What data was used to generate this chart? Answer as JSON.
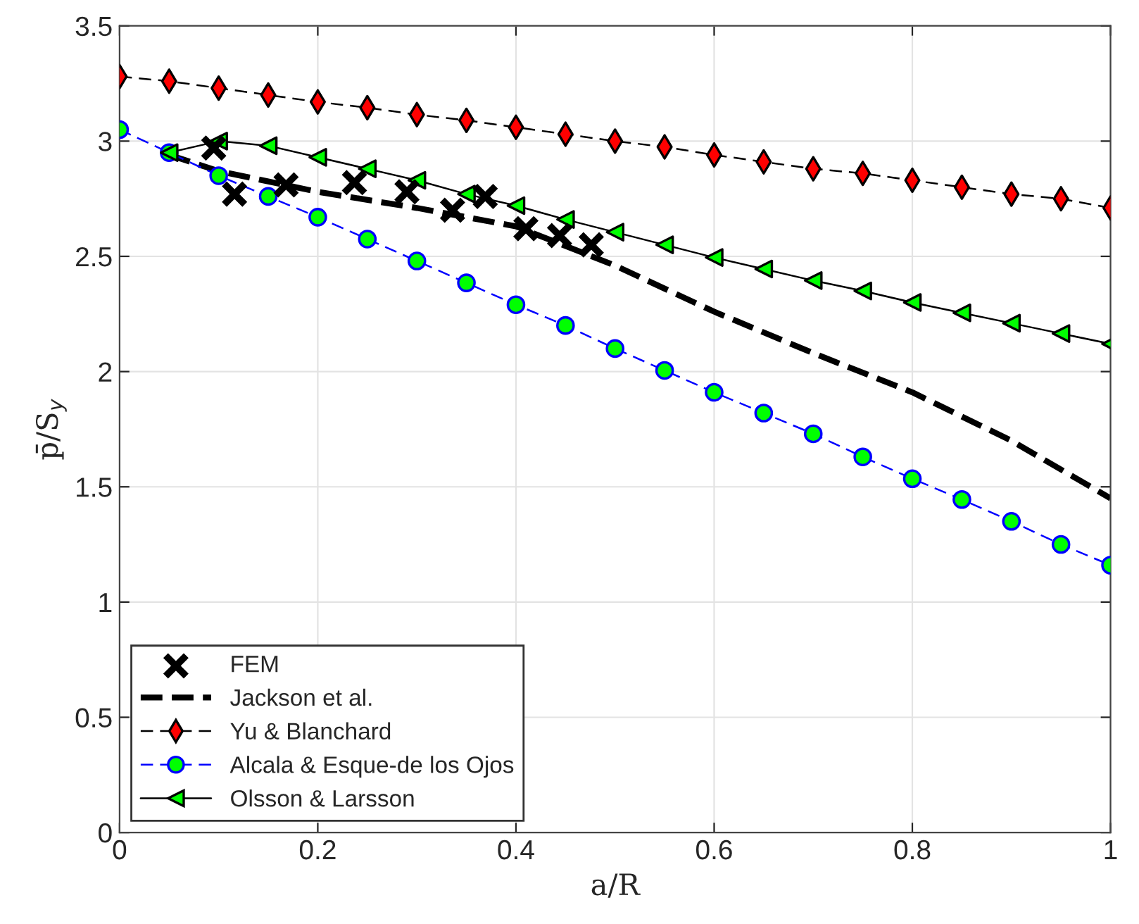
{
  "chart_data": {
    "type": "line",
    "xlabel": "a/R",
    "ylabel": "p̄/S$_{y}$",
    "xlim": [
      0,
      1
    ],
    "ylim": [
      0,
      3.5
    ],
    "xticks": [
      0,
      0.2,
      0.4,
      0.6,
      0.8,
      1
    ],
    "yticks": [
      0,
      0.5,
      1,
      1.5,
      2,
      2.5,
      3,
      3.5
    ],
    "grid": true,
    "legend": "bottom left",
    "series": [
      {
        "name": "FEM",
        "type": "scatter",
        "marker": "cross",
        "color": "#000000",
        "x": [
          0.095,
          0.116,
          0.168,
          0.237,
          0.29,
          0.336,
          0.369,
          0.41,
          0.444,
          0.476
        ],
        "values": [
          2.97,
          2.77,
          2.81,
          2.82,
          2.78,
          2.7,
          2.76,
          2.62,
          2.59,
          2.55
        ]
      },
      {
        "name": "Jackson et al.",
        "marker": "none",
        "line_style": "dashed",
        "color": "#000000",
        "x": [
          0.05,
          0.1,
          0.2,
          0.3,
          0.4,
          0.5,
          0.6,
          0.7,
          0.8,
          0.9,
          1.0
        ],
        "values": [
          2.94,
          2.87,
          2.78,
          2.71,
          2.63,
          2.46,
          2.26,
          2.08,
          1.91,
          1.7,
          1.45
        ]
      },
      {
        "name": "Yu & Blanchard",
        "marker": "diamond",
        "line_style": "dashed",
        "color": "#000000",
        "colors": [
          "#ff0000",
          "#ff0000",
          "#ff0000",
          "#ff0000",
          "#ff0000",
          "#ff0000",
          "#ff0000",
          "#ff0000",
          "#ff0000",
          "#ff0000",
          "#ff0000",
          "#ff0000",
          "#ff0000",
          "#ff0000",
          "#ff0000",
          "#ff0000",
          "#ff0000",
          "#ff0000",
          "#ff0000",
          "#ff0000",
          "#ff0000"
        ],
        "x": [
          0,
          0.05,
          0.1,
          0.15,
          0.2,
          0.25,
          0.3,
          0.35,
          0.4,
          0.45,
          0.5,
          0.55,
          0.6,
          0.65,
          0.7,
          0.75,
          0.8,
          0.85,
          0.9,
          0.95,
          1.0
        ],
        "values": [
          3.28,
          3.26,
          3.23,
          3.2,
          3.17,
          3.145,
          3.115,
          3.09,
          3.06,
          3.03,
          3.0,
          2.975,
          2.94,
          2.91,
          2.88,
          2.86,
          2.83,
          2.8,
          2.77,
          2.75,
          2.71
        ]
      },
      {
        "name": "Alcala & Esque-de los Ojos",
        "marker": "circle",
        "line_style": "dashed",
        "color": "#0000ff",
        "colors": [
          "#00ff00",
          "#00ff00",
          "#00ff00",
          "#00ff00",
          "#00ff00",
          "#00ff00",
          "#00ff00",
          "#00ff00",
          "#00ff00",
          "#00ff00",
          "#00ff00",
          "#00ff00",
          "#00ff00",
          "#00ff00",
          "#00ff00",
          "#00ff00",
          "#00ff00",
          "#00ff00",
          "#00ff00",
          "#00ff00",
          "#00ff00"
        ],
        "x": [
          0,
          0.05,
          0.1,
          0.15,
          0.2,
          0.25,
          0.3,
          0.35,
          0.4,
          0.45,
          0.5,
          0.55,
          0.6,
          0.65,
          0.7,
          0.75,
          0.8,
          0.85,
          0.9,
          0.95,
          1.0
        ],
        "values": [
          3.05,
          2.95,
          2.85,
          2.76,
          2.67,
          2.575,
          2.48,
          2.385,
          2.29,
          2.2,
          2.1,
          2.005,
          1.91,
          1.82,
          1.73,
          1.63,
          1.535,
          1.445,
          1.35,
          1.25,
          1.16
        ]
      },
      {
        "name": "Olsson & Larsson",
        "marker": "triangle",
        "line_style": "solid",
        "color": "#000000",
        "colors": [
          "#00ff00",
          "#00ff00",
          "#00ff00",
          "#00ff00",
          "#00ff00",
          "#00ff00",
          "#00ff00",
          "#00ff00",
          "#00ff00",
          "#00ff00",
          "#00ff00",
          "#00ff00",
          "#00ff00",
          "#00ff00",
          "#00ff00",
          "#00ff00",
          "#00ff00",
          "#00ff00",
          "#00ff00",
          "#00ff00"
        ],
        "x": [
          0.05,
          0.1,
          0.15,
          0.2,
          0.25,
          0.3,
          0.35,
          0.4,
          0.45,
          0.5,
          0.55,
          0.6,
          0.65,
          0.7,
          0.75,
          0.8,
          0.85,
          0.9,
          0.95,
          1.0
        ],
        "values": [
          2.95,
          3.0,
          2.98,
          2.93,
          2.88,
          2.83,
          2.77,
          2.72,
          2.66,
          2.605,
          2.55,
          2.495,
          2.445,
          2.395,
          2.35,
          2.3,
          2.255,
          2.21,
          2.165,
          2.12
        ]
      }
    ]
  }
}
